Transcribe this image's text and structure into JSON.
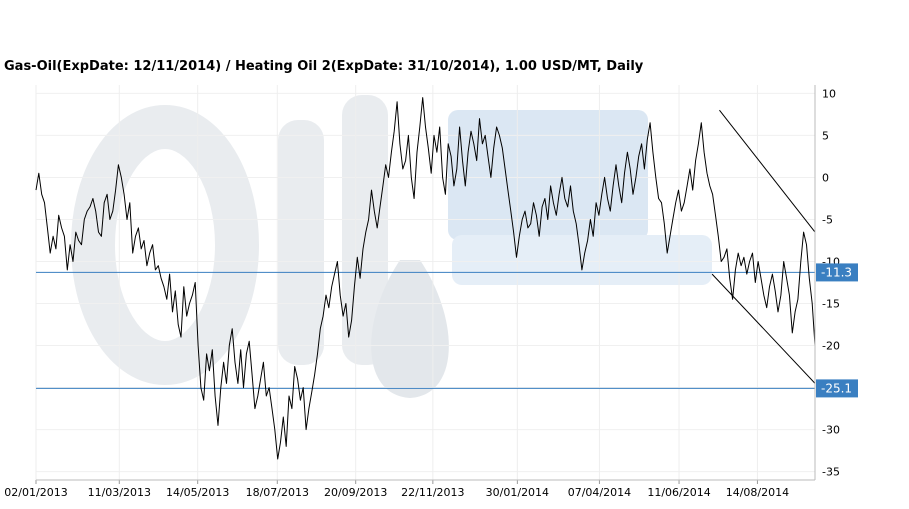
{
  "chart_data": {
    "type": "line",
    "title": "Gas-Oil(ExpDate: 12/11/2014) / Heating Oil 2(ExpDate: 31/10/2014), 1.00 USD/MT, Daily",
    "xlabel": "",
    "ylabel": "",
    "ylim": [
      -36,
      11
    ],
    "y_ticks": [
      10,
      5,
      0,
      -5,
      -10,
      -15,
      -20,
      -25,
      -30,
      -35
    ],
    "x_ticks": [
      "02/01/2013",
      "11/03/2013",
      "14/05/2013",
      "18/07/2013",
      "20/09/2013",
      "22/11/2013",
      "30/01/2014",
      "07/04/2014",
      "11/06/2014",
      "14/08/2014"
    ],
    "grid": true,
    "watermark": "OilStat",
    "horizontal_lines": [
      {
        "value": -11.3,
        "label": "-11.3",
        "color": "#3a7fc1"
      },
      {
        "value": -25.1,
        "label": "-25.1",
        "color": "#3a7fc1"
      }
    ],
    "trend_channel": {
      "upper": {
        "from": [
          "14/07/2014",
          8
        ],
        "to": [
          "30/09/2014",
          -6.5
        ]
      },
      "lower": {
        "from": [
          "08/07/2014",
          -11.5
        ],
        "to": [
          "30/09/2014",
          -24.5
        ]
      }
    },
    "series": [
      {
        "color": "#000000",
        "x_start": "02/01/2013",
        "x_end": "30/09/2014",
        "values": [
          -1.5,
          0.5,
          -2,
          -3,
          -6,
          -9,
          -7,
          -8.5,
          -4.5,
          -6,
          -7,
          -11,
          -8,
          -10,
          -6.5,
          -7.5,
          -8,
          -5,
          -4,
          -3.5,
          -2.5,
          -4,
          -6.5,
          -7,
          -3,
          -2,
          -5,
          -4,
          -1.5,
          1.5,
          0,
          -2,
          -5,
          -3,
          -9,
          -7,
          -6,
          -8.5,
          -7.5,
          -10.5,
          -9,
          -8,
          -11,
          -10.5,
          -12,
          -13,
          -14.5,
          -11.5,
          -16,
          -13.5,
          -17.5,
          -19,
          -13,
          -16.5,
          -15,
          -14,
          -12.5,
          -20,
          -25,
          -26.5,
          -21,
          -23,
          -20.5,
          -26,
          -29.5,
          -25,
          -22,
          -24.5,
          -20,
          -18,
          -22,
          -24.5,
          -20.5,
          -25,
          -21,
          -19.5,
          -23.5,
          -27.5,
          -26,
          -24,
          -22,
          -26,
          -25,
          -27.5,
          -30,
          -33.5,
          -31.5,
          -28.5,
          -32,
          -26,
          -27.5,
          -22.5,
          -24,
          -26.5,
          -25,
          -30,
          -27.5,
          -25.5,
          -23.5,
          -21,
          -18,
          -16.5,
          -14,
          -15.5,
          -13,
          -11.5,
          -10,
          -14,
          -16.5,
          -15,
          -19,
          -17,
          -13,
          -9.5,
          -12,
          -8.5,
          -6.5,
          -5,
          -1.5,
          -4,
          -6,
          -3.5,
          -1,
          1.5,
          0,
          3,
          5.5,
          9,
          4,
          1,
          2,
          5,
          0,
          -2.5,
          3,
          6,
          9.5,
          6,
          3.5,
          0.5,
          5,
          3,
          6,
          0,
          -2,
          4,
          2.5,
          -1,
          1,
          6,
          2,
          -1,
          3,
          5.5,
          4,
          2,
          7,
          4,
          5,
          2.5,
          0,
          3.5,
          6,
          5,
          3.5,
          1,
          -1.5,
          -4,
          -6.5,
          -9.5,
          -7,
          -5,
          -4,
          -6,
          -5.5,
          -3,
          -4.5,
          -7,
          -3.5,
          -2.5,
          -5,
          -1,
          -3,
          -4.5,
          -2,
          0,
          -2.5,
          -3.5,
          -1,
          -4,
          -5.5,
          -8,
          -11,
          -9,
          -7.5,
          -5,
          -7,
          -3,
          -4.5,
          -2,
          0,
          -2.5,
          -4,
          -1,
          1.5,
          -1,
          -3,
          0.5,
          3,
          1,
          -2,
          0,
          2.5,
          4,
          1,
          4.5,
          6.5,
          3,
          0,
          -2.5,
          -3,
          -5.5,
          -9,
          -7,
          -5,
          -3,
          -1.5,
          -4,
          -3,
          -1,
          1,
          -1.5,
          2,
          4,
          6.5,
          3,
          0.5,
          -1,
          -2,
          -4.5,
          -7,
          -10,
          -9.5,
          -8.5,
          -12,
          -14.5,
          -11,
          -9,
          -10.5,
          -9.5,
          -11.5,
          -10,
          -9,
          -12.5,
          -10,
          -12,
          -14,
          -15.5,
          -13,
          -11.5,
          -13.5,
          -16,
          -14,
          -10,
          -12,
          -14,
          -18.5,
          -16,
          -14.5,
          -10,
          -6.5,
          -8,
          -12,
          -15,
          -20
        ]
      }
    ]
  }
}
